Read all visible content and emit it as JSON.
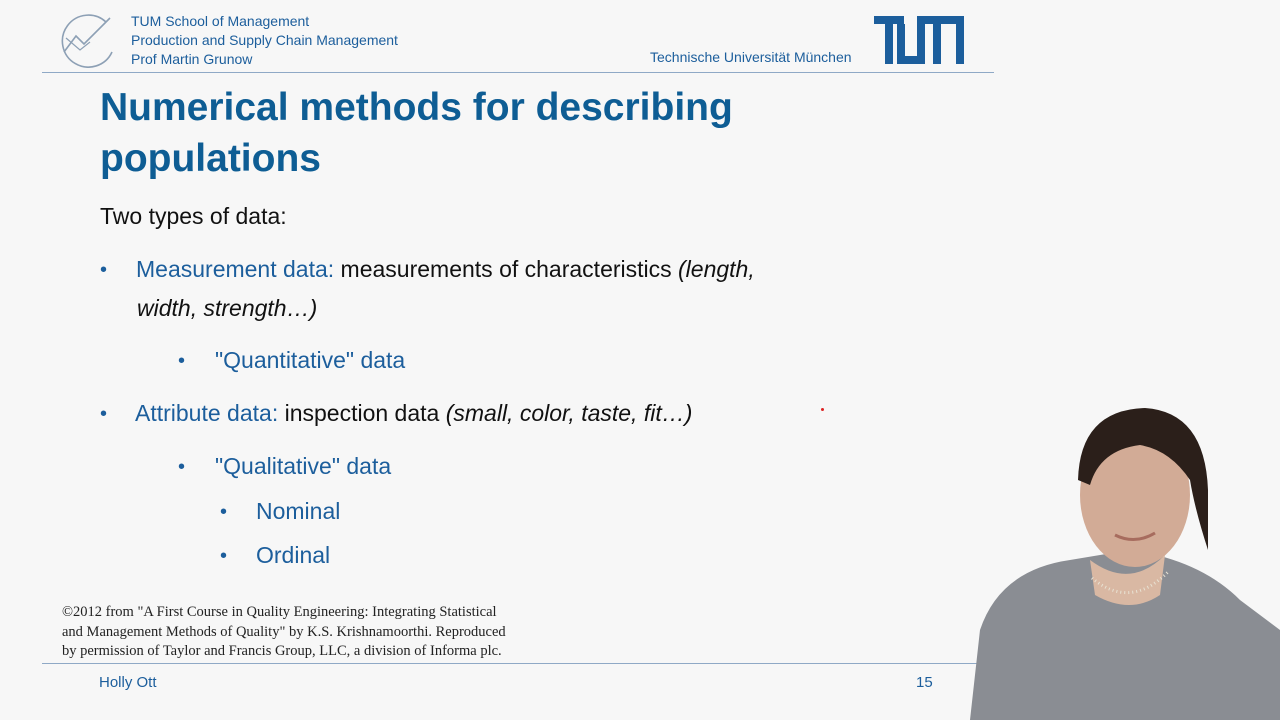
{
  "header": {
    "lines": [
      "TUM School of Management",
      "Production and Supply Chain Management",
      "Prof Martin Grunow"
    ],
    "university_name": "Technische Universität München",
    "logo_text": "TUM"
  },
  "title_lines": [
    "Numerical methods for describing",
    "populations"
  ],
  "intro": "Two types of data:",
  "measurement": {
    "term": "Measurement data",
    "colon": ":",
    "desc": " measurements of characteristics ",
    "examples_line1": "(length,",
    "examples_line2": "width, strength…)",
    "sub": "\"Quantitative\" data"
  },
  "attribute": {
    "term": "Attribute data",
    "colon": ":",
    "desc": " inspection data ",
    "examples": "(small, color, taste, fit…)",
    "sub": "\"Qualitative\" data",
    "subsub": [
      "Nominal",
      "Ordinal"
    ]
  },
  "credit_lines": [
    "©2012 from \"A First Course in Quality Engineering: Integrating Statistical",
    "and Management Methods of Quality\" by K.S. Krishnamoorthi. Reproduced",
    "by permission of Taylor and Francis Group, LLC, a division of Informa plc."
  ],
  "footer": {
    "presenter": "Holly Ott",
    "page": "15"
  },
  "colors": {
    "brand_blue": "#1c5e9c",
    "title_blue": "#0e5d94",
    "background": "#f7f7f7"
  },
  "icons": [
    "tum-school-logo-icon",
    "tum-logo-icon",
    "bullet-icon"
  ]
}
